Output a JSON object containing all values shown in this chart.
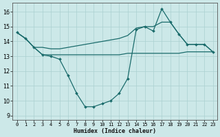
{
  "xlabel": "Humidex (Indice chaleur)",
  "x_values": [
    0,
    1,
    2,
    3,
    4,
    5,
    6,
    7,
    8,
    9,
    10,
    11,
    12,
    13,
    14,
    15,
    16,
    17,
    18,
    19,
    20,
    21,
    22,
    23
  ],
  "curve_ushape": [
    14.6,
    14.2,
    13.6,
    13.1,
    13.0,
    12.8,
    11.7,
    10.5,
    9.6,
    9.6,
    9.8,
    10.0,
    10.5,
    11.5,
    14.8,
    15.0,
    14.7,
    16.2,
    15.3,
    14.5,
    13.8,
    13.8,
    13.8,
    13.3
  ],
  "curve_upper": [
    14.6,
    14.2,
    13.6,
    13.6,
    13.5,
    13.5,
    13.6,
    13.7,
    13.8,
    13.9,
    14.0,
    14.1,
    14.2,
    14.4,
    14.9,
    15.0,
    15.0,
    15.3,
    15.3,
    14.5,
    13.8,
    13.8,
    13.8,
    13.3
  ],
  "curve_flat": [
    14.6,
    14.2,
    13.6,
    13.1,
    13.1,
    13.1,
    13.1,
    13.1,
    13.1,
    13.1,
    13.1,
    13.1,
    13.1,
    13.2,
    13.2,
    13.2,
    13.2,
    13.2,
    13.2,
    13.2,
    13.3,
    13.3,
    13.3,
    13.3
  ],
  "line_color": "#1a6b6b",
  "bg_color": "#cce8e8",
  "grid_color": "#aad0d0",
  "ylim": [
    8.7,
    16.6
  ],
  "yticks": [
    9,
    10,
    11,
    12,
    13,
    14,
    15,
    16
  ],
  "xlim": [
    -0.5,
    23.5
  ]
}
